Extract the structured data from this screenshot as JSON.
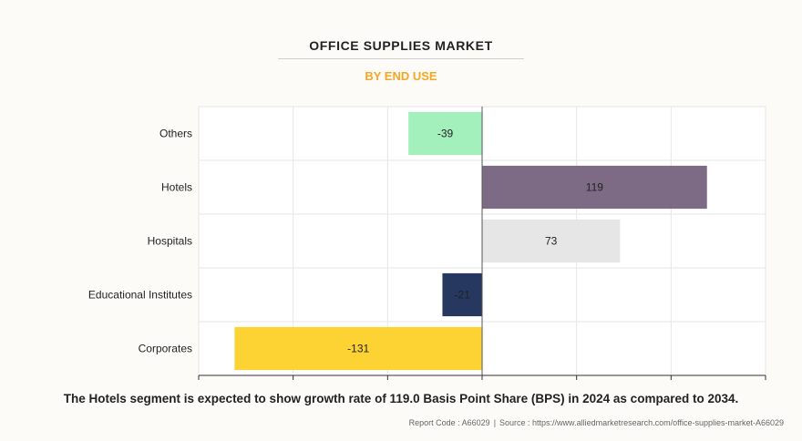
{
  "title": "OFFICE SUPPLIES MARKET",
  "subtitle": "BY END USE",
  "caption": "The Hotels segment is expected to show growth rate of 119.0 Basis Point Share (BPS) in 2024 as compared to 2034.",
  "footer": {
    "report_code": "Report Code : A66029",
    "separator": "|",
    "source": "Source : https://www.alliedmarketresearch.com/office-supplies-market-A66029"
  },
  "chart_data": {
    "type": "bar",
    "orientation": "horizontal",
    "categories": [
      "Others",
      "Hotels",
      "Hospitals",
      "Educational Institutes",
      "Corporates"
    ],
    "values": [
      -39,
      119,
      73,
      -21,
      -131
    ],
    "colors": [
      "#a3f0bd",
      "#7d6b85",
      "#e6e6e6",
      "#26385f",
      "#fdd233"
    ],
    "label_colors": [
      "#222222",
      "#222222",
      "#222222",
      "#222222",
      "#222222"
    ],
    "xlim": [
      -150,
      150
    ],
    "x_tick_step": 50,
    "grid": true
  }
}
